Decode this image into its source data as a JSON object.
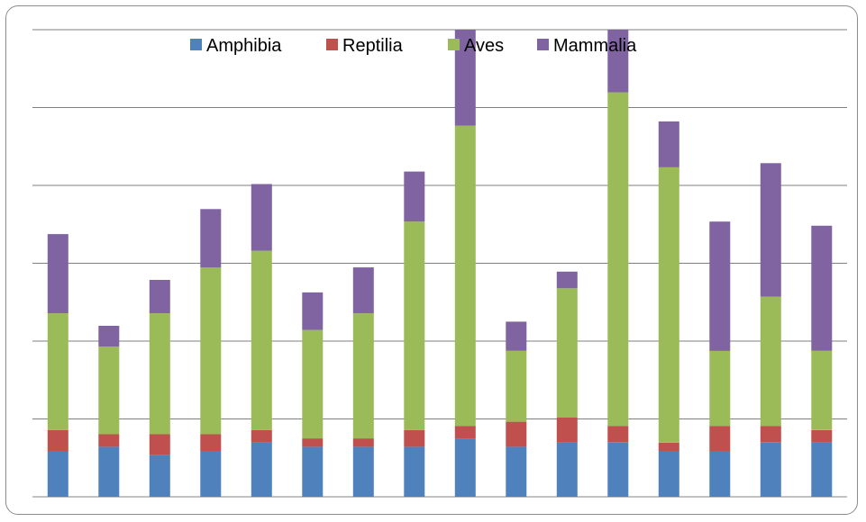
{
  "chart_data": {
    "type": "bar",
    "stacked": true,
    "categories": [
      "",
      "",
      "",
      "",
      "",
      "",
      "",
      "",
      "",
      "",
      "",
      "",
      "",
      "",
      "",
      ""
    ],
    "series": [
      {
        "name": "Amphibia",
        "color": "#4F81BD",
        "values": [
          5.5,
          6.0,
          5.0,
          5.5,
          6.5,
          6.0,
          6.0,
          6.0,
          7.0,
          6.0,
          6.5,
          6.5,
          5.5,
          5.5,
          6.5,
          6.5
        ]
      },
      {
        "name": "Reptilia",
        "color": "#C0504D",
        "values": [
          2.5,
          1.5,
          2.5,
          2.0,
          1.5,
          1.0,
          1.0,
          2.0,
          1.5,
          3.0,
          3.0,
          2.0,
          1.0,
          3.0,
          2.0,
          1.5
        ]
      },
      {
        "name": "Aves",
        "color": "#9BBB59",
        "values": [
          14.0,
          10.5,
          14.5,
          20.0,
          21.5,
          13.0,
          15.0,
          25.0,
          36.0,
          8.5,
          15.5,
          40.0,
          33.0,
          9.0,
          15.5,
          9.5
        ]
      },
      {
        "name": "Mammalia",
        "color": "#8064A2",
        "values": [
          9.5,
          2.5,
          4.0,
          7.0,
          8.0,
          4.5,
          5.5,
          6.0,
          11.5,
          3.5,
          2.0,
          7.5,
          5.5,
          15.5,
          16.0,
          15.0
        ]
      }
    ],
    "ylim": [
      0,
      56
    ],
    "grid": true,
    "gridlines_count": 6,
    "legend_position": "top",
    "title": "",
    "xlabel": "",
    "ylabel": ""
  }
}
